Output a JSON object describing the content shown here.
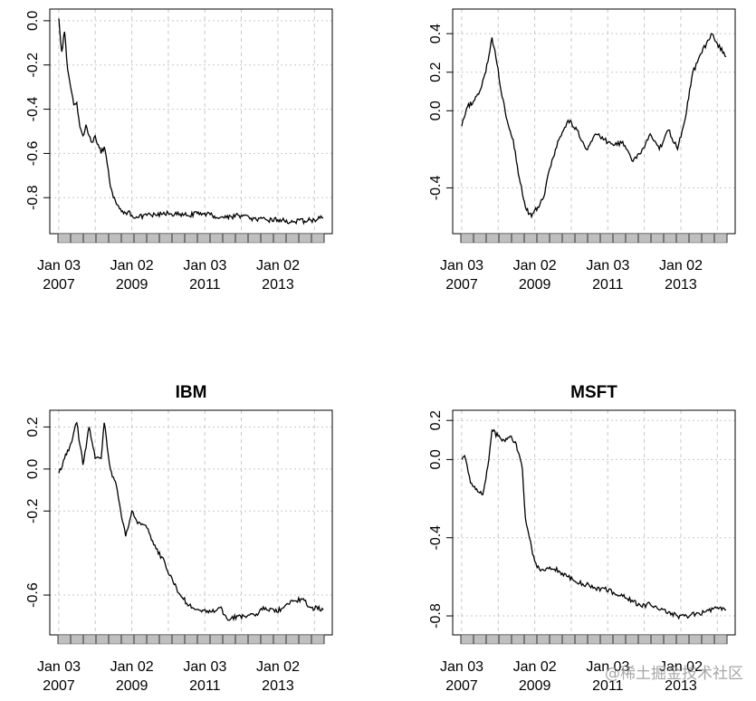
{
  "watermark": "@稀土掘金技术社区",
  "colors": {
    "line": "#000000",
    "grid": "#c8c8c8",
    "axis_band": "#bfbfbf",
    "frame": "#000000"
  },
  "chart_data": [
    {
      "type": "line",
      "title": "",
      "grid": true,
      "x_ticks": [
        {
          "top": "Jan 03",
          "bottom": "2007"
        },
        {
          "top": "Jan 02",
          "bottom": "2009"
        },
        {
          "top": "Jan 03",
          "bottom": "2011"
        },
        {
          "top": "Jan 02",
          "bottom": "2013"
        }
      ],
      "y_ticks": [
        "0.0",
        "-0.2",
        "-0.4",
        "-0.6",
        "-0.8"
      ],
      "xlim": [
        "2007-01-03",
        "2014-03-31"
      ],
      "ylim": [
        -0.93,
        0.02
      ],
      "series": [
        {
          "x": [
            "2007-01-03",
            "2007-02-01",
            "2007-03-01",
            "2007-04-01",
            "2007-05-01",
            "2007-06-01",
            "2007-07-01",
            "2007-08-01",
            "2007-09-01",
            "2007-10-01",
            "2007-11-01",
            "2007-12-01",
            "2008-01-01",
            "2008-02-01",
            "2008-03-01",
            "2008-04-01",
            "2008-05-01",
            "2008-06-01",
            "2008-07-01",
            "2008-08-01",
            "2008-09-01",
            "2008-10-01",
            "2008-11-01",
            "2008-12-01",
            "2009-01-02",
            "2009-03-01",
            "2009-06-01",
            "2009-09-01",
            "2010-01-01",
            "2010-06-01",
            "2011-01-01",
            "2011-06-01",
            "2012-01-01",
            "2012-06-01",
            "2013-01-01",
            "2013-06-01",
            "2014-01-01",
            "2014-03-31"
          ],
          "y": [
            0.01,
            -0.14,
            -0.05,
            -0.22,
            -0.3,
            -0.38,
            -0.37,
            -0.48,
            -0.52,
            -0.47,
            -0.52,
            -0.55,
            -0.52,
            -0.56,
            -0.6,
            -0.57,
            -0.65,
            -0.75,
            -0.8,
            -0.83,
            -0.85,
            -0.86,
            -0.87,
            -0.86,
            -0.88,
            -0.89,
            -0.88,
            -0.88,
            -0.87,
            -0.88,
            -0.87,
            -0.89,
            -0.88,
            -0.9,
            -0.9,
            -0.91,
            -0.9,
            -0.89
          ]
        }
      ]
    },
    {
      "type": "line",
      "title": "",
      "grid": true,
      "x_ticks": [
        {
          "top": "Jan 03",
          "bottom": "2007"
        },
        {
          "top": "Jan 02",
          "bottom": "2009"
        },
        {
          "top": "Jan 03",
          "bottom": "2011"
        },
        {
          "top": "Jan 02",
          "bottom": "2013"
        }
      ],
      "y_ticks": [
        "0.4",
        "0.2",
        "0.0",
        "-0.4"
      ],
      "xlim": [
        "2007-01-03",
        "2014-03-31"
      ],
      "ylim": [
        -0.6,
        0.49
      ],
      "series": [
        {
          "x": [
            "2007-01-03",
            "2007-03-01",
            "2007-05-01",
            "2007-07-01",
            "2007-09-01",
            "2007-11-01",
            "2008-01-01",
            "2008-02-01",
            "2008-04-01",
            "2008-06-01",
            "2008-08-01",
            "2008-10-01",
            "2008-12-01",
            "2009-02-01",
            "2009-04-01",
            "2009-06-01",
            "2009-09-01",
            "2009-12-01",
            "2010-03-01",
            "2010-06-01",
            "2010-09-01",
            "2010-12-01",
            "2011-03-01",
            "2011-06-01",
            "2011-09-01",
            "2011-12-01",
            "2012-03-01",
            "2012-06-01",
            "2012-09-01",
            "2012-12-01",
            "2013-03-01",
            "2013-05-01",
            "2013-08-01",
            "2013-11-01",
            "2014-01-01",
            "2014-03-31"
          ],
          "y": [
            -0.08,
            0.02,
            0.05,
            0.1,
            0.2,
            0.38,
            0.22,
            0.1,
            -0.05,
            -0.15,
            -0.35,
            -0.5,
            -0.55,
            -0.5,
            -0.45,
            -0.3,
            -0.15,
            -0.05,
            -0.1,
            -0.2,
            -0.12,
            -0.15,
            -0.18,
            -0.16,
            -0.26,
            -0.22,
            -0.12,
            -0.2,
            -0.1,
            -0.2,
            0.0,
            0.2,
            0.3,
            0.4,
            0.35,
            0.28
          ]
        }
      ]
    },
    {
      "type": "line",
      "title": "IBM",
      "grid": true,
      "x_ticks": [
        {
          "top": "Jan 03",
          "bottom": "2007"
        },
        {
          "top": "Jan 02",
          "bottom": "2009"
        },
        {
          "top": "Jan 03",
          "bottom": "2011"
        },
        {
          "top": "Jan 02",
          "bottom": "2013"
        }
      ],
      "y_ticks": [
        "0.2",
        "0.0",
        "-0.2",
        "-0.6"
      ],
      "xlim": [
        "2007-01-03",
        "2014-03-31"
      ],
      "ylim": [
        -0.755,
        0.245
      ],
      "series": [
        {
          "x": [
            "2007-01-03",
            "2007-03-01",
            "2007-05-01",
            "2007-07-01",
            "2007-09-01",
            "2007-11-01",
            "2008-01-01",
            "2008-03-01",
            "2008-04-01",
            "2008-06-01",
            "2008-08-01",
            "2008-10-01",
            "2008-11-01",
            "2009-01-02",
            "2009-03-01",
            "2009-06-01",
            "2009-09-01",
            "2009-12-01",
            "2010-03-01",
            "2010-06-01",
            "2010-09-01",
            "2010-12-01",
            "2011-03-01",
            "2011-06-01",
            "2011-09-01",
            "2011-12-01",
            "2012-03-01",
            "2012-06-01",
            "2012-09-01",
            "2012-12-01",
            "2013-03-01",
            "2013-06-01",
            "2013-09-01",
            "2013-12-01",
            "2014-03-31"
          ],
          "y": [
            -0.02,
            0.05,
            0.12,
            0.22,
            0.02,
            0.2,
            0.05,
            0.05,
            0.22,
            0.0,
            -0.08,
            -0.25,
            -0.32,
            -0.2,
            -0.26,
            -0.28,
            -0.38,
            -0.45,
            -0.55,
            -0.62,
            -0.66,
            -0.68,
            -0.68,
            -0.66,
            -0.72,
            -0.7,
            -0.7,
            -0.69,
            -0.66,
            -0.68,
            -0.66,
            -0.63,
            -0.62,
            -0.66,
            -0.67
          ]
        }
      ]
    },
    {
      "type": "line",
      "title": "MSFT",
      "grid": true,
      "x_ticks": [
        {
          "top": "Jan 03",
          "bottom": "2007"
        },
        {
          "top": "Jan 02",
          "bottom": "2009"
        },
        {
          "top": "Jan 03",
          "bottom": "2011"
        },
        {
          "top": "Jan 02",
          "bottom": "2013"
        }
      ],
      "y_ticks": [
        "0.2",
        "0.0",
        "-0.4",
        "-0.8"
      ],
      "xlim": [
        "2007-01-03",
        "2014-03-31"
      ],
      "ylim": [
        -0.86,
        0.215
      ],
      "series": [
        {
          "x": [
            "2007-01-03",
            "2007-02-01",
            "2007-04-01",
            "2007-06-01",
            "2007-08-01",
            "2007-10-01",
            "2007-11-01",
            "2008-01-01",
            "2008-03-01",
            "2008-05-01",
            "2008-07-01",
            "2008-09-01",
            "2008-10-01",
            "2008-12-01",
            "2009-01-02",
            "2009-03-01",
            "2009-06-01",
            "2009-09-01",
            "2009-12-01",
            "2010-03-01",
            "2010-06-01",
            "2010-09-01",
            "2010-12-01",
            "2011-03-01",
            "2011-06-01",
            "2011-09-01",
            "2011-12-01",
            "2012-03-01",
            "2012-06-01",
            "2012-09-01",
            "2012-12-01",
            "2013-03-01",
            "2013-06-01",
            "2013-09-01",
            "2013-12-01",
            "2014-03-31"
          ],
          "y": [
            0.0,
            0.02,
            -0.12,
            -0.15,
            -0.18,
            0.0,
            0.15,
            0.12,
            0.1,
            0.12,
            0.08,
            -0.05,
            -0.3,
            -0.45,
            -0.52,
            -0.57,
            -0.55,
            -0.57,
            -0.6,
            -0.63,
            -0.64,
            -0.66,
            -0.66,
            -0.68,
            -0.7,
            -0.72,
            -0.75,
            -0.74,
            -0.77,
            -0.78,
            -0.8,
            -0.8,
            -0.79,
            -0.78,
            -0.76,
            -0.77
          ]
        }
      ]
    }
  ]
}
